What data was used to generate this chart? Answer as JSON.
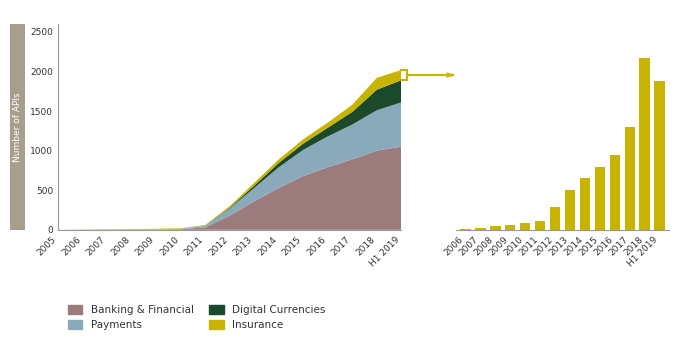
{
  "years_area": [
    "2005",
    "2006",
    "2007",
    "2008",
    "2009",
    "2010",
    "2011",
    "2012",
    "2013",
    "2014",
    "2015",
    "2016",
    "2017",
    "2018",
    "H1 2019"
  ],
  "banking": [
    0,
    2,
    3,
    4,
    5,
    8,
    30,
    180,
    360,
    530,
    680,
    790,
    890,
    1000,
    1050
  ],
  "payments": [
    0,
    1,
    2,
    3,
    4,
    6,
    20,
    90,
    170,
    260,
    330,
    390,
    440,
    510,
    560
  ],
  "digital": [
    0,
    0,
    0,
    0,
    0,
    0,
    2,
    10,
    30,
    55,
    80,
    110,
    160,
    260,
    280
  ],
  "insurance": [
    0,
    1,
    2,
    3,
    4,
    6,
    8,
    20,
    35,
    45,
    55,
    65,
    90,
    150,
    130
  ],
  "years_bar": [
    "2006",
    "2007",
    "2008",
    "2009",
    "2010",
    "2011",
    "2012",
    "2013",
    "2014",
    "2015",
    "2016",
    "2017",
    "2018",
    "H1 2019"
  ],
  "bar_values": [
    1,
    2,
    3,
    4,
    6,
    8,
    20,
    35,
    45,
    55,
    65,
    90,
    150,
    130
  ],
  "color_banking": "#9B7B7B",
  "color_payments": "#8AAABB",
  "color_digital": "#1A4A2A",
  "color_insurance": "#C8B400",
  "color_bar": "#C8B400",
  "color_bracket": "#C8B400",
  "ylabel": "Number of APIs",
  "ylim_area": [
    0,
    2600
  ],
  "yticks_area": [
    0,
    500,
    1000,
    1500,
    2000,
    2500
  ],
  "legend_labels": [
    "Banking & Financial",
    "Payments",
    "Digital Currencies",
    "Insurance"
  ],
  "bg_color": "#FFFFFF",
  "spine_color": "#999999",
  "label_color": "#333333",
  "gray_bar_color": "#A89E8E"
}
